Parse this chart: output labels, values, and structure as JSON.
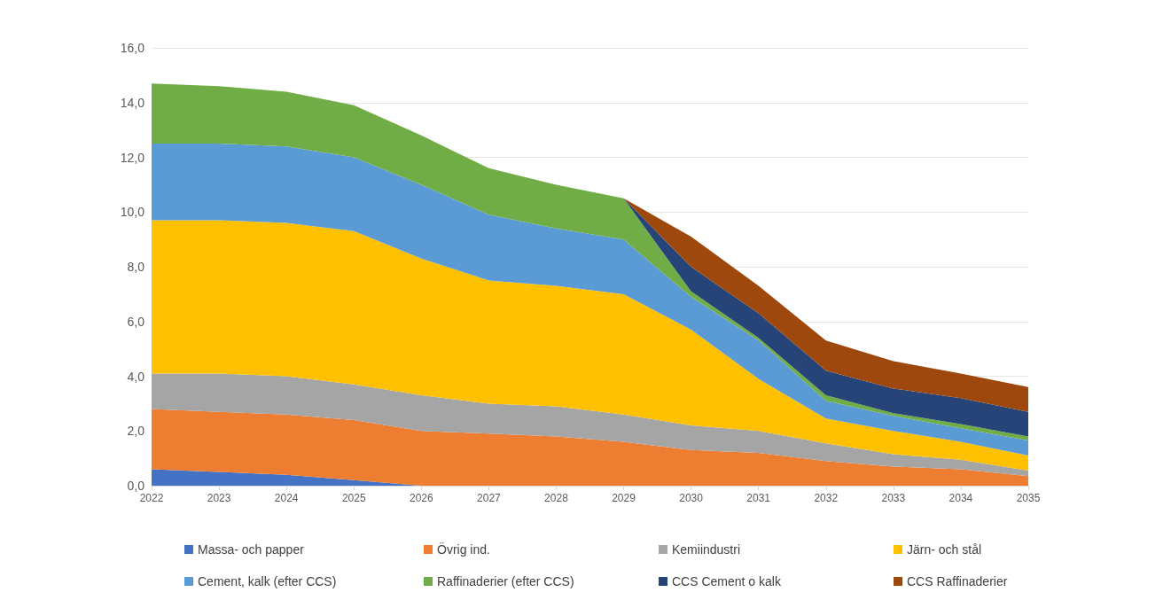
{
  "chart_data": {
    "type": "area",
    "stacked": true,
    "categories": [
      "2022",
      "2023",
      "2024",
      "2025",
      "2026",
      "2027",
      "2028",
      "2029",
      "2030",
      "2031",
      "2032",
      "2033",
      "2034",
      "2035"
    ],
    "ylim": [
      0,
      16
    ],
    "yticks": [
      {
        "value": 0,
        "label": "0,0"
      },
      {
        "value": 2,
        "label": "2,0"
      },
      {
        "value": 4,
        "label": "4,0"
      },
      {
        "value": 6,
        "label": "6,0"
      },
      {
        "value": 8,
        "label": "8,0"
      },
      {
        "value": 10,
        "label": "10,0"
      },
      {
        "value": 12,
        "label": "12,0"
      },
      {
        "value": 14,
        "label": "14,0"
      },
      {
        "value": 16,
        "label": "16,0"
      }
    ],
    "grid": "y",
    "legend": "bottom",
    "series": [
      {
        "name": "Massa- och papper",
        "color": "#4472c4",
        "values": [
          0.6,
          0.5,
          0.4,
          0.2,
          0,
          0,
          0,
          0,
          0,
          0,
          0,
          0,
          0,
          0
        ]
      },
      {
        "name": "Övrig ind.",
        "color": "#ed7d31",
        "values": [
          2.2,
          2.2,
          2.2,
          2.2,
          2.0,
          1.9,
          1.8,
          1.6,
          1.3,
          1.2,
          0.9,
          0.7,
          0.6,
          0.35
        ]
      },
      {
        "name": "Kemiindustri",
        "color": "#a5a5a5",
        "values": [
          1.3,
          1.4,
          1.4,
          1.3,
          1.3,
          1.1,
          1.1,
          1.0,
          0.9,
          0.8,
          0.65,
          0.45,
          0.35,
          0.2
        ]
      },
      {
        "name": "Järn- och stål",
        "color": "#ffc000",
        "values": [
          5.6,
          5.6,
          5.6,
          5.6,
          5.0,
          4.5,
          4.4,
          4.4,
          3.5,
          1.9,
          0.9,
          0.85,
          0.65,
          0.55
        ]
      },
      {
        "name": "Cement, kalk (efter CCS)",
        "color": "#5b9bd5",
        "values": [
          2.8,
          2.8,
          2.8,
          2.7,
          2.7,
          2.4,
          2.1,
          2.0,
          1.2,
          1.4,
          0.65,
          0.55,
          0.5,
          0.55
        ]
      },
      {
        "name": "Raffinaderier (efter CCS)",
        "color": "#70ad47",
        "values": [
          2.2,
          2.1,
          2.0,
          1.9,
          1.8,
          1.7,
          1.6,
          1.5,
          0.2,
          0.1,
          0.2,
          0.1,
          0.15,
          0.15
        ]
      },
      {
        "name": "CCS Cement o kalk",
        "color": "#264478",
        "values": [
          0,
          0,
          0,
          0,
          0,
          0,
          0,
          0,
          0.9,
          0.9,
          0.9,
          0.9,
          0.95,
          0.9
        ]
      },
      {
        "name": "CCS Raffinaderier",
        "color": "#9e480e",
        "values": [
          0,
          0,
          0,
          0,
          0,
          0,
          0,
          0,
          1.1,
          1.0,
          1.1,
          1.0,
          0.9,
          0.9
        ]
      }
    ]
  }
}
